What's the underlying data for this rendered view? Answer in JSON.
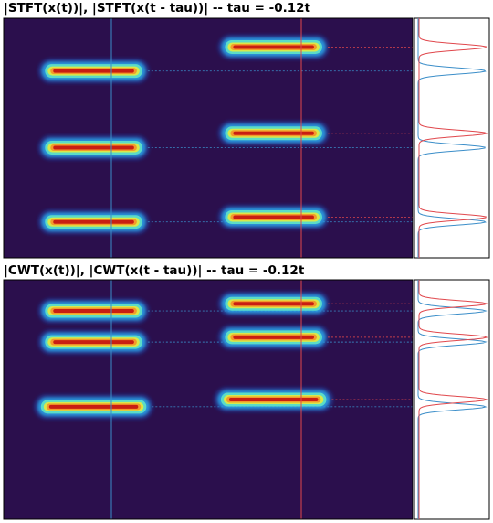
{
  "chart_data": [
    {
      "type": "heatmap",
      "title": "|STFT(x(t))|, |STFT(x(t - tau))| -- tau = -0.12t",
      "colormap": "jet",
      "background_color": "#2b0f4d",
      "reference_time_line_color": "#3b8ec9",
      "shifted_time_line_color": "#e0474c",
      "blobs": [
        {
          "group": "original",
          "freq_level": 0.78,
          "time_center": 0.22,
          "time_half_width": 0.11
        },
        {
          "group": "original",
          "freq_level": 0.46,
          "time_center": 0.22,
          "time_half_width": 0.11
        },
        {
          "group": "original",
          "freq_level": 0.15,
          "time_center": 0.22,
          "time_half_width": 0.11
        },
        {
          "group": "shifted",
          "freq_level": 0.88,
          "time_center": 0.66,
          "time_half_width": 0.11
        },
        {
          "group": "shifted",
          "freq_level": 0.52,
          "time_center": 0.66,
          "time_half_width": 0.11
        },
        {
          "group": "shifted",
          "freq_level": 0.17,
          "time_center": 0.66,
          "time_half_width": 0.11
        }
      ],
      "side_profile": {
        "series": [
          {
            "color": "#3b8ec9",
            "peaks": [
              0.78,
              0.46,
              0.15
            ]
          },
          {
            "color": "#e0474c",
            "peaks": [
              0.88,
              0.52,
              0.17
            ]
          }
        ]
      }
    },
    {
      "type": "heatmap",
      "title": "|CWT(x(t))|, |CWT(x(t - tau))| -- tau = -0.12t",
      "colormap": "jet",
      "background_color": "#2b0f4d",
      "reference_time_line_color": "#3b8ec9",
      "shifted_time_line_color": "#e0474c",
      "blobs": [
        {
          "group": "original",
          "freq_level": 0.87,
          "time_center": 0.22,
          "time_half_width": 0.11
        },
        {
          "group": "original",
          "freq_level": 0.74,
          "time_center": 0.22,
          "time_half_width": 0.11
        },
        {
          "group": "original",
          "freq_level": 0.47,
          "time_center": 0.22,
          "time_half_width": 0.12
        },
        {
          "group": "shifted",
          "freq_level": 0.9,
          "time_center": 0.66,
          "time_half_width": 0.11
        },
        {
          "group": "shifted",
          "freq_level": 0.76,
          "time_center": 0.66,
          "time_half_width": 0.11
        },
        {
          "group": "shifted",
          "freq_level": 0.5,
          "time_center": 0.66,
          "time_half_width": 0.12
        }
      ],
      "side_profile": {
        "series": [
          {
            "color": "#3b8ec9",
            "peaks": [
              0.87,
              0.74,
              0.47
            ]
          },
          {
            "color": "#e0474c",
            "peaks": [
              0.9,
              0.76,
              0.5
            ]
          }
        ]
      }
    }
  ]
}
